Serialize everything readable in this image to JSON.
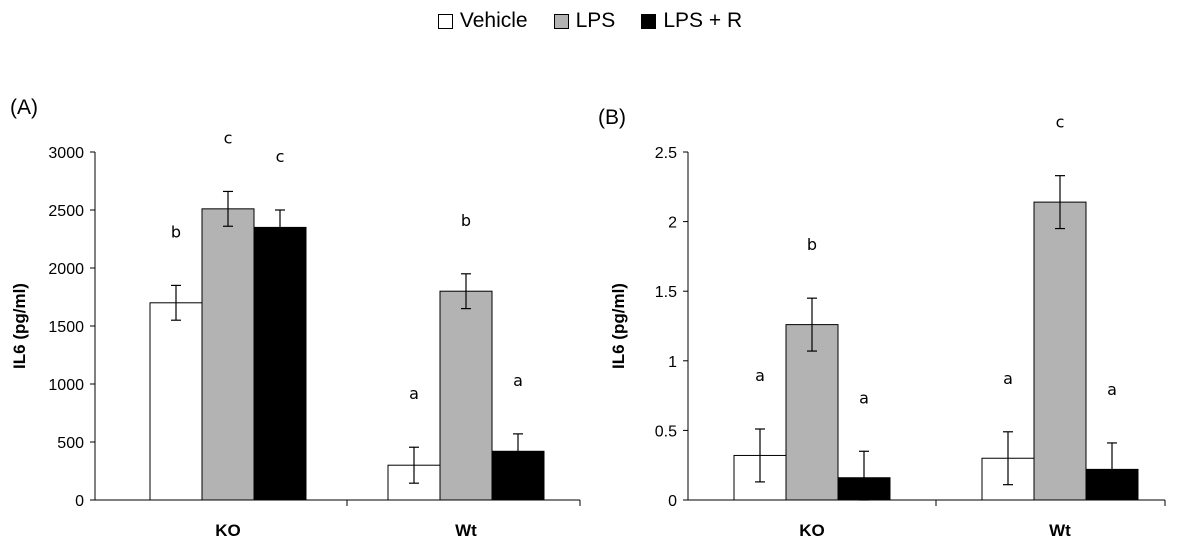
{
  "legend": [
    {
      "name": "Vehicle",
      "color": "#ffffff"
    },
    {
      "name": "LPS",
      "color": "#b3b3b3"
    },
    {
      "name": "LPS + R",
      "color": "#000000"
    }
  ],
  "chart_data": [
    {
      "type": "bar",
      "panel_label": "(A)",
      "ylabel": "IL6 (pg/ml)",
      "ylim": [
        0,
        3000
      ],
      "yticks": [
        "0",
        "500",
        "1000",
        "1500",
        "2000",
        "2500",
        "3000"
      ],
      "yticks_values": [
        0,
        500,
        1000,
        1500,
        2000,
        2500,
        3000
      ],
      "categories": [
        "KO",
        "Wt"
      ],
      "series": [
        {
          "name": "Vehicle",
          "values": [
            1700,
            300
          ],
          "errors": [
            150,
            155
          ],
          "letters": [
            "b",
            "a"
          ]
        },
        {
          "name": "LPS",
          "values": [
            2510,
            1800
          ],
          "errors": [
            150,
            150
          ],
          "letters": [
            "c",
            "b"
          ]
        },
        {
          "name": "LPS + R",
          "values": [
            2350,
            420
          ],
          "errors": [
            150,
            150
          ],
          "letters": [
            "c",
            "a"
          ]
        }
      ]
    },
    {
      "type": "bar",
      "panel_label": "(B)",
      "ylabel": "IL6 (pg/ml)",
      "ylim": [
        0,
        2.5
      ],
      "yticks": [
        "0",
        "0.5",
        "1",
        "1.5",
        "2",
        "2.5"
      ],
      "yticks_values": [
        0,
        0.5,
        1,
        1.5,
        2,
        2.5
      ],
      "categories": [
        "KO",
        "Wt"
      ],
      "series": [
        {
          "name": "Vehicle",
          "values": [
            0.32,
            0.3
          ],
          "errors": [
            0.19,
            0.19
          ],
          "letters": [
            "a",
            "a"
          ]
        },
        {
          "name": "LPS",
          "values": [
            1.26,
            2.14
          ],
          "errors": [
            0.19,
            0.19
          ],
          "letters": [
            "b",
            "c"
          ]
        },
        {
          "name": "LPS + R",
          "values": [
            0.16,
            0.22
          ],
          "errors": [
            0.19,
            0.19
          ],
          "letters": [
            "a",
            "a"
          ]
        }
      ]
    }
  ]
}
